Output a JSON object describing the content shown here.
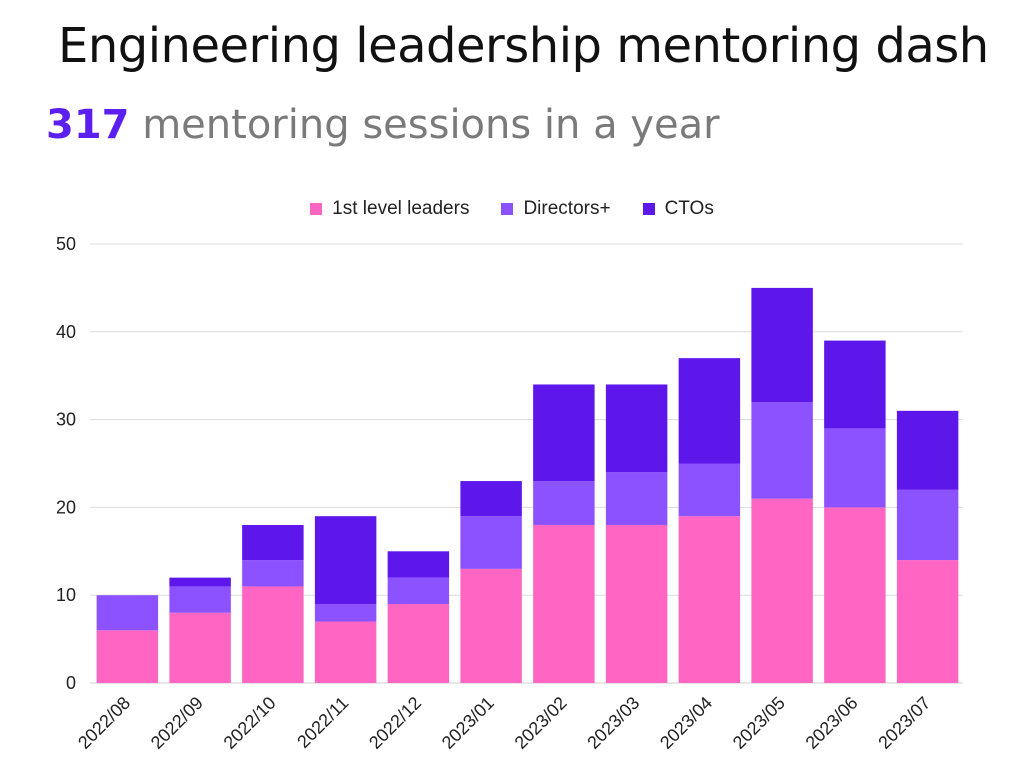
{
  "title": "Engineering leadership mentoring dash",
  "subtitle": {
    "highlight": "317",
    "text": " mentoring sessions in a year"
  },
  "colors": {
    "first_level": "#ff66c4",
    "directors": "#8c52ff",
    "ctos": "#5e17eb",
    "highlight": "#5b1ff0"
  },
  "chart_data": {
    "type": "bar",
    "stacked": true,
    "categories": [
      "2022/08",
      "2022/09",
      "2022/10",
      "2022/11",
      "2022/12",
      "2023/01",
      "2023/02",
      "2023/03",
      "2023/04",
      "2023/05",
      "2023/06",
      "2023/07"
    ],
    "series": [
      {
        "name": "1st level leaders",
        "color": "#ff66c4",
        "values": [
          6,
          8,
          11,
          7,
          9,
          13,
          18,
          18,
          19,
          21,
          20,
          14
        ]
      },
      {
        "name": "Directors+",
        "color": "#8c52ff",
        "values": [
          4,
          3,
          3,
          2,
          3,
          6,
          5,
          6,
          6,
          11,
          9,
          8
        ]
      },
      {
        "name": "CTOs",
        "color": "#5e17eb",
        "values": [
          0,
          1,
          4,
          10,
          3,
          4,
          11,
          10,
          12,
          13,
          10,
          9
        ]
      }
    ],
    "ylim": [
      0,
      50
    ],
    "yticks": [
      0,
      10,
      20,
      30,
      40,
      50
    ],
    "grid": true,
    "legend": "top-center",
    "xlabel": "",
    "ylabel": ""
  }
}
